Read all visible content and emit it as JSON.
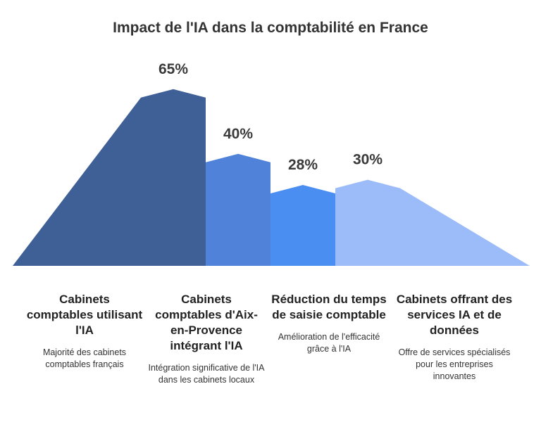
{
  "chart_data": {
    "type": "area",
    "title": "Impact de l'IA dans la comptabilité en France",
    "categories": [
      "Cabinets comptables utilisant l'IA",
      "Cabinets comptables d'Aix-en-Provence intégrant l'IA",
      "Réduction du temps de saisie comptable",
      "Cabinets offrant des services IA et de données"
    ],
    "values": [
      65,
      40,
      28,
      30
    ],
    "data_labels": [
      "65%",
      "40%",
      "28%",
      "30%"
    ],
    "descriptions": [
      "Majorité des cabinets comptables français",
      "Intégration significative de l'IA dans les cabinets locaux",
      "Amélioration de l'efficacité grâce à l'IA",
      "Offre de services spécialisés pour les entreprises innovantes"
    ],
    "colors": [
      "#3f5f97",
      "#4f82d8",
      "#4a8ef2",
      "#9bbcf9"
    ]
  }
}
